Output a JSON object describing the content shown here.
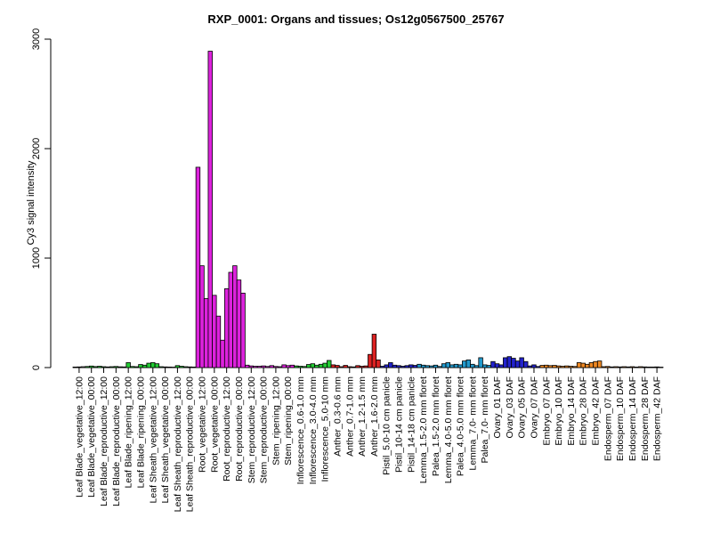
{
  "chart_data": {
    "type": "bar",
    "title": "RXP_0001: Organs and tissues; Os12g0567500_25767",
    "xlabel": "",
    "ylabel": "Cy3 signal intensity",
    "ylim": [
      0,
      3000
    ],
    "yticks": [
      0,
      1000,
      2000,
      3000
    ],
    "grid": false,
    "tick_labels": [
      "Leaf Blade_vegetative_12:00",
      "Leaf Blade_vegetative_00:00",
      "Leaf Blade_reproductive_12:00",
      "Leaf Blade_reproductive_00:00",
      "Leaf Blade_ripening_12:00",
      "Leaf Blade_ripening_00:00",
      "Leaf Sheath_vegetative_12:00",
      "Leaf Sheath_vegetative_00:00",
      "Leaf Sheath_reproductive_12:00",
      "Leaf Sheath_reproductive_00:00",
      "Root_vegetative_12:00",
      "Root_vegetative_00:00",
      "Root_reproductive_12:00",
      "Root_reproductive_00:00",
      "Stem_reproductive_12:00",
      "Stem_reproductive_00:00",
      "Stem_ripening_12:00",
      "Stem_ripening_00:00",
      "Inflorescence_0.6-1.0 mm",
      "Inflorescence_3.0-4.0 mm",
      "Inflorescence_5.0-10 mm",
      "Anther_0.3-0.6 mm",
      "Anther_0.7-1.0 mm",
      "Anther_1.2-1.5 mm",
      "Anther_1.6-2.0 mm",
      "Pistil_5.0-10 cm panicle",
      "Pistil_10-14 cm panicle",
      "Pistil_14-18 cm panicle",
      "Lemma_1.5-2.0 mm floret",
      "Palea_1.5-2.0 mm floret",
      "Lemma_4.0-5.0 mm floret",
      "Palea_4.0-5.0 mm floret",
      "Lemma_7.0- mm floret",
      "Palea_7.0- mm floret",
      "Ovary_01 DAF",
      "Ovary_03 DAF",
      "Ovary_05 DAF",
      "Ovary_07 DAF",
      "Embryo_07 DAF",
      "Embryo_10 DAF",
      "Embryo_14 DAF",
      "Embryo_28 DAF",
      "Embryo_42 DAF",
      "Endosperm_07 DAF",
      "Endosperm_10 DAF",
      "Endosperm_14 DAF",
      "Endosperm_28 DAF",
      "Endosperm_42 DAF"
    ],
    "groups": [
      {
        "color": "#bfbfbf",
        "values": [
          5,
          6,
          8
        ]
      },
      {
        "color": "#22cc33",
        "values": [
          10,
          14,
          9
        ]
      },
      {
        "color": "#22cc33",
        "values": [
          12,
          8,
          6
        ]
      },
      {
        "color": "#22cc33",
        "values": [
          8,
          10,
          7
        ]
      },
      {
        "color": "#22cc33",
        "values": [
          6,
          45,
          10
        ]
      },
      {
        "color": "#22cc33",
        "values": [
          8,
          28,
          22
        ]
      },
      {
        "color": "#22cc33",
        "values": [
          40,
          45,
          35
        ]
      },
      {
        "color": "#22cc33",
        "values": [
          8,
          6,
          5
        ]
      },
      {
        "color": "#22cc33",
        "values": [
          4,
          18,
          12
        ]
      },
      {
        "color": "#22cc33",
        "values": [
          8,
          6,
          5
        ]
      },
      {
        "color": "#dd22dd",
        "values": [
          1830,
          930,
          630
        ]
      },
      {
        "color": "#dd22dd",
        "values": [
          2890,
          660,
          470
        ]
      },
      {
        "color": "#dd22dd",
        "values": [
          250,
          720,
          870
        ]
      },
      {
        "color": "#dd22dd",
        "values": [
          930,
          800,
          680
        ]
      },
      {
        "color": "#dd22dd",
        "values": [
          22,
          15,
          12
        ]
      },
      {
        "color": "#dd22dd",
        "values": [
          12,
          15,
          10
        ]
      },
      {
        "color": "#dd22dd",
        "values": [
          18,
          10,
          8
        ]
      },
      {
        "color": "#dd22dd",
        "values": [
          25,
          18,
          22
        ]
      },
      {
        "color": "#22cc33",
        "values": [
          15,
          12,
          10
        ]
      },
      {
        "color": "#22cc33",
        "values": [
          28,
          35,
          22
        ]
      },
      {
        "color": "#22cc33",
        "values": [
          30,
          40,
          65
        ]
      },
      {
        "color": "#dd2222",
        "values": [
          25,
          20,
          8
        ]
      },
      {
        "color": "#dd2222",
        "values": [
          20,
          8,
          6
        ]
      },
      {
        "color": "#dd2222",
        "values": [
          18,
          12,
          15
        ]
      },
      {
        "color": "#dd2222",
        "values": [
          120,
          305,
          70
        ]
      },
      {
        "color": "#2222cc",
        "values": [
          12,
          25,
          45
        ]
      },
      {
        "color": "#2222cc",
        "values": [
          22,
          18,
          12
        ]
      },
      {
        "color": "#2222cc",
        "values": [
          18,
          25,
          20
        ]
      },
      {
        "color": "#2299cc",
        "values": [
          30,
          22,
          18
        ]
      },
      {
        "color": "#2299cc",
        "values": [
          15,
          22,
          10
        ]
      },
      {
        "color": "#2299cc",
        "values": [
          35,
          45,
          25
        ]
      },
      {
        "color": "#2299cc",
        "values": [
          30,
          25,
          60
        ]
      },
      {
        "color": "#2299cc",
        "values": [
          70,
          30,
          18
        ]
      },
      {
        "color": "#2299cc",
        "values": [
          90,
          25,
          20
        ]
      },
      {
        "color": "#2222cc",
        "values": [
          55,
          35,
          25
        ]
      },
      {
        "color": "#2222cc",
        "values": [
          90,
          100,
          85
        ]
      },
      {
        "color": "#2222cc",
        "values": [
          60,
          90,
          55
        ]
      },
      {
        "color": "#2222cc",
        "values": [
          15,
          25,
          10
        ]
      },
      {
        "color": "#ee8822",
        "values": [
          20,
          22,
          18
        ]
      },
      {
        "color": "#ee8822",
        "values": [
          20,
          15,
          12
        ]
      },
      {
        "color": "#ee8822",
        "values": [
          15,
          12,
          10
        ]
      },
      {
        "color": "#ee8822",
        "values": [
          45,
          40,
          30
        ]
      },
      {
        "color": "#ee8822",
        "values": [
          45,
          55,
          60
        ]
      },
      {
        "color": "#ee8822",
        "values": [
          8,
          10,
          6
        ]
      },
      {
        "color": "#ee8822",
        "values": [
          8,
          6,
          8
        ]
      },
      {
        "color": "#ee8822",
        "values": [
          6,
          8,
          5
        ]
      },
      {
        "color": "#ee8822",
        "values": [
          8,
          6,
          5
        ]
      },
      {
        "color": "#ee8822",
        "values": [
          5,
          6,
          4
        ]
      }
    ]
  }
}
